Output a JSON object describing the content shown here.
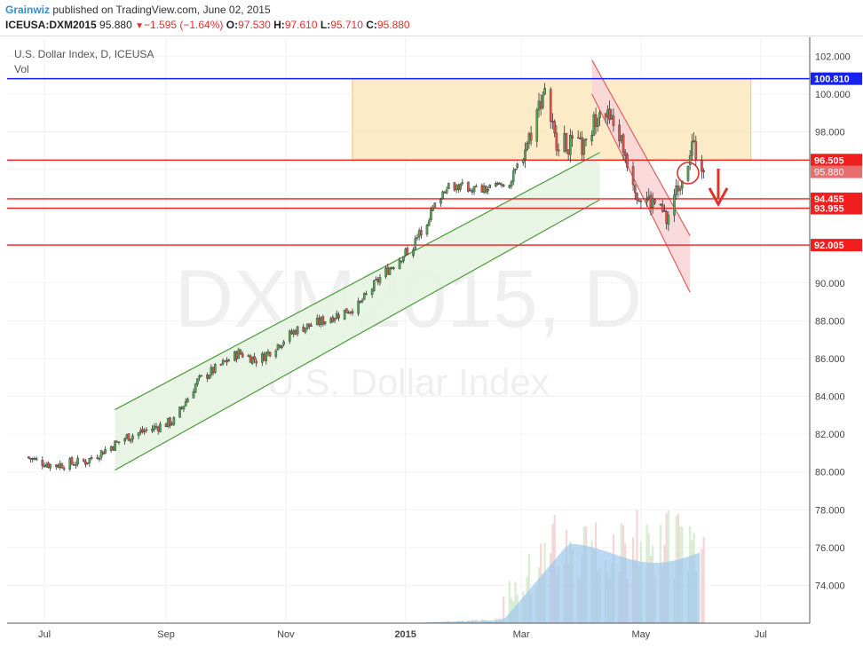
{
  "header": {
    "author": "Grainwiz",
    "published": "published on TradingView.com, June 02, 2015",
    "symbol": "ICEUSA:DXM2015",
    "last": "95.880",
    "change": "−1.595 (−1.64%)",
    "o_label": "O:",
    "o": "97.530",
    "h_label": "H:",
    "h": "97.610",
    "l_label": "L:",
    "l": "95.710",
    "c_label": "C:",
    "c": "95.880"
  },
  "legend": {
    "title": "U.S. Dollar Index, D, ICEUSA",
    "vol": "Vol"
  },
  "watermark": {
    "main": "DXM2015, D",
    "sub": "U.S. Dollar Index"
  },
  "colors": {
    "up": "#53a653",
    "down": "#e05252",
    "blue_line": "#1522f0",
    "red_line": "#f01e1e",
    "zone": "#fde8be",
    "channel": "#e6f3e1",
    "channel_line": "#4c9a3c",
    "down_channel": "#f9d6d6",
    "volume": "#9cc8ec"
  },
  "chart_data": {
    "type": "candlestick",
    "title": "U.S. Dollar Index, D, ICEUSA",
    "ylim": [
      72,
      103
    ],
    "y_ticks": [
      "74.000",
      "76.000",
      "78.000",
      "80.000",
      "82.000",
      "84.000",
      "86.000",
      "88.000",
      "90.000",
      "92.000",
      "94.000",
      "96.000",
      "98.000",
      "100.000",
      "102.000"
    ],
    "x_ticks": [
      "Jul",
      "Sep",
      "Nov",
      "2015",
      "Mar",
      "May",
      "Jul"
    ],
    "levels": [
      {
        "value": 100.81,
        "label": "100.810",
        "color": "#1522f0"
      },
      {
        "value": 96.505,
        "label": "96.505",
        "color": "#f01e1e"
      },
      {
        "value": 94.455,
        "label": "94.455",
        "color": "#f01e1e"
      },
      {
        "value": 93.955,
        "label": "93.955",
        "color": "#f01e1e"
      },
      {
        "value": 92.005,
        "label": "92.005",
        "color": "#f01e1e"
      }
    ],
    "last_price": {
      "value": 95.88,
      "label": "95.880"
    },
    "price_anchors": [
      {
        "date": "2014-06-21",
        "close": 80.8
      },
      {
        "date": "2014-07-05",
        "close": 80.35
      },
      {
        "date": "2014-07-22",
        "close": 80.55
      },
      {
        "date": "2014-08-12",
        "close": 81.85
      },
      {
        "date": "2014-09-05",
        "close": 82.7
      },
      {
        "date": "2014-09-17",
        "close": 84.8
      },
      {
        "date": "2014-10-08",
        "close": 86.3
      },
      {
        "date": "2014-10-18",
        "close": 85.9
      },
      {
        "date": "2014-11-06",
        "close": 87.5
      },
      {
        "date": "2014-11-20",
        "close": 88.0
      },
      {
        "date": "2014-12-08",
        "close": 88.8
      },
      {
        "date": "2014-12-20",
        "close": 90.4
      },
      {
        "date": "2015-01-05",
        "close": 92.0
      },
      {
        "date": "2015-01-22",
        "close": 95.2
      },
      {
        "date": "2015-02-10",
        "close": 94.9
      },
      {
        "date": "2015-02-24",
        "close": 95.4
      },
      {
        "date": "2015-03-06",
        "close": 98.0
      },
      {
        "date": "2015-03-13",
        "close": 100.4
      },
      {
        "date": "2015-03-18",
        "close": 97.6
      },
      {
        "date": "2015-03-26",
        "close": 97.3
      },
      {
        "date": "2015-04-03",
        "close": 97.1
      },
      {
        "date": "2015-04-10",
        "close": 99.5
      },
      {
        "date": "2015-04-20",
        "close": 97.8
      },
      {
        "date": "2015-04-30",
        "close": 94.6
      },
      {
        "date": "2015-05-08",
        "close": 94.2
      },
      {
        "date": "2015-05-14",
        "close": 93.3
      },
      {
        "date": "2015-05-27",
        "close": 97.3
      },
      {
        "date": "2015-06-02",
        "close": 95.88
      }
    ],
    "zone": {
      "start": "2014-12-05",
      "end": "2015-06-26",
      "low": 96.505,
      "high": 100.81
    },
    "up_channel": {
      "lower": [
        [
          "2014-08-06",
          80.1
        ],
        [
          "2015-04-10",
          94.4
        ]
      ],
      "upper": [
        [
          "2014-08-06",
          83.3
        ],
        [
          "2015-04-10",
          96.9
        ]
      ]
    },
    "down_channel": {
      "upper": [
        [
          "2015-04-06",
          101.8
        ],
        [
          "2015-05-26",
          92.5
        ]
      ],
      "lower": [
        [
          "2015-04-06",
          100.0
        ],
        [
          "2015-05-26",
          89.5
        ]
      ]
    },
    "volume_profile": {
      "start": "2015-01-01",
      "ramp_start": "2015-02-20",
      "peak": 76.2,
      "end": "2015-05-31"
    }
  }
}
